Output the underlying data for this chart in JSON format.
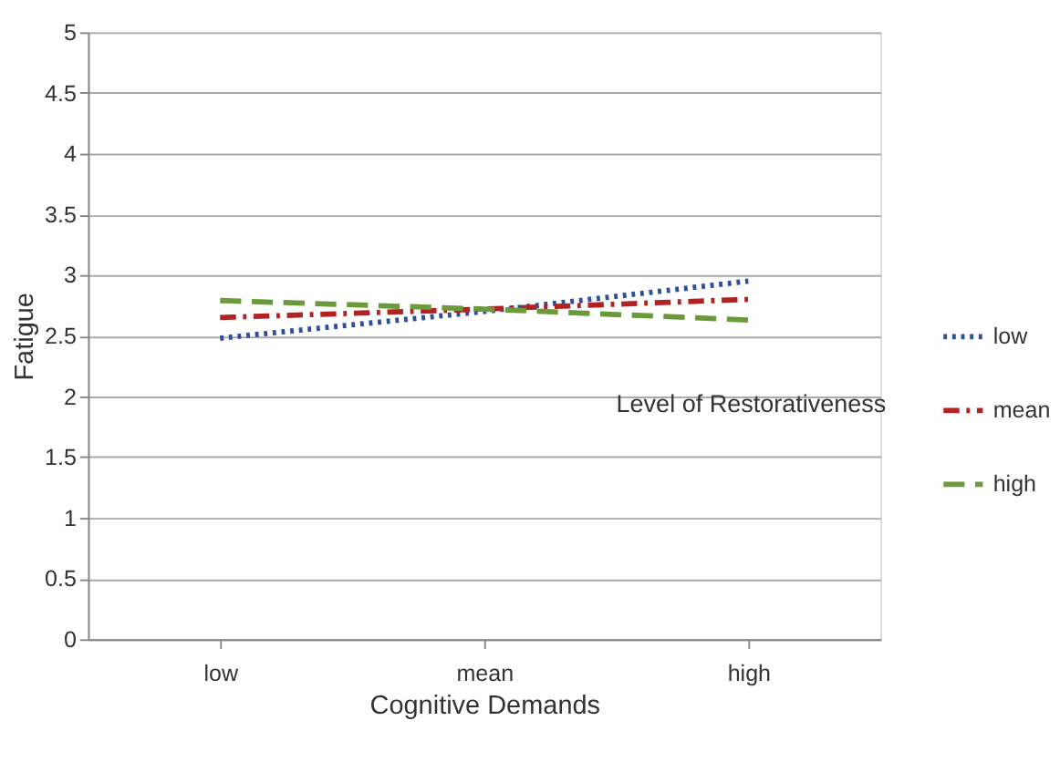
{
  "chart_data": {
    "type": "line",
    "xlabel": "Cognitive Demands",
    "ylabel": "Fatigue",
    "legend_title": "Level of Restorativeness",
    "categories": [
      "low",
      "mean",
      "high"
    ],
    "series": [
      {
        "name": "low",
        "color": "#2e4f9e",
        "line_style": "dotted",
        "values": [
          2.48,
          2.7,
          2.95
        ]
      },
      {
        "name": "mean",
        "color": "#b22222",
        "line_style": "dashdot",
        "values": [
          2.65,
          2.72,
          2.8
        ]
      },
      {
        "name": "high",
        "color": "#6a9a3a",
        "line_style": "dashed",
        "values": [
          2.79,
          2.72,
          2.63
        ]
      }
    ],
    "ylim": [
      0,
      5
    ],
    "yticks": [
      0,
      0.5,
      1,
      1.5,
      2,
      2.5,
      3,
      3.5,
      4,
      4.5,
      5
    ],
    "grid": "y",
    "legend": "right",
    "marker": "none"
  }
}
